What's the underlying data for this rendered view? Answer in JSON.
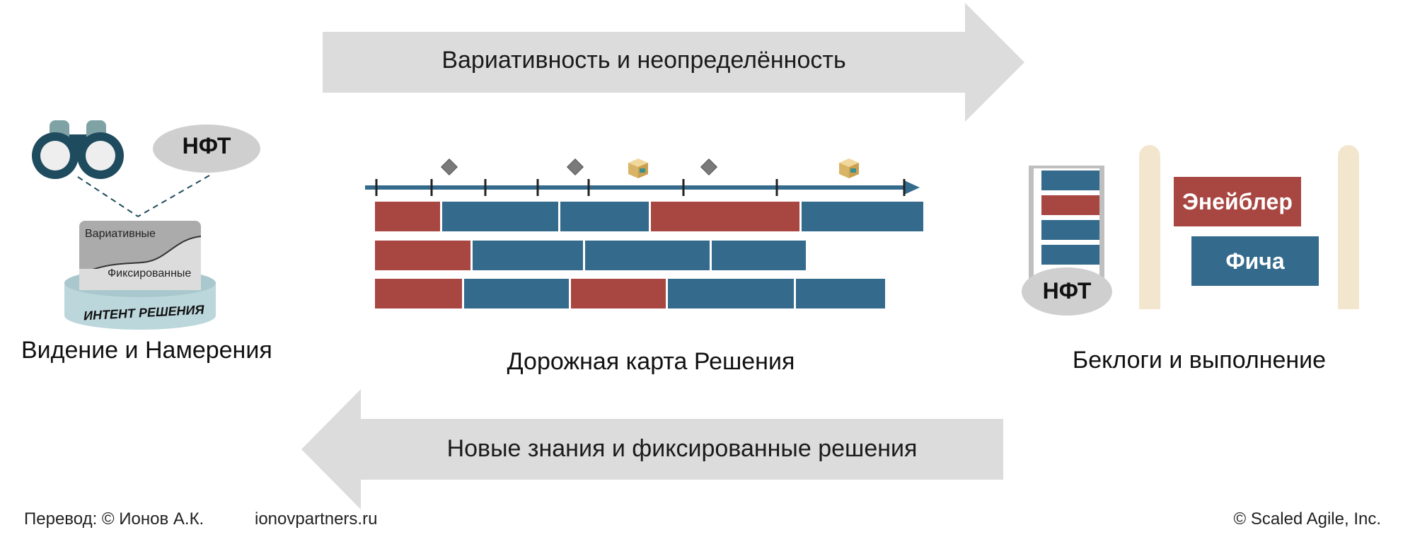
{
  "top_arrow": {
    "label": "Вариативность и неопределённость"
  },
  "bottom_arrow": {
    "label": "Новые знания и фиксированные решения"
  },
  "vision": {
    "bubble_label": "НФТ",
    "card_top": "Вариативные",
    "card_bottom": "Фиксированные",
    "platform_label": "ИНТЕНТ РЕШЕНИЯ",
    "caption": "Видение и Намерения"
  },
  "roadmap": {
    "caption": "Дорожная карта Решения",
    "rows": [
      [
        "red",
        "blue",
        "blue",
        "red",
        "blue"
      ],
      [
        "red",
        "blue",
        "blue",
        "blue"
      ],
      [
        "red",
        "blue",
        "red",
        "blue",
        "blue"
      ]
    ]
  },
  "backlogs": {
    "stack_label": "НФТ",
    "enabler_label": "Энейблер",
    "feature_label": "Фича",
    "caption": "Беклоги и выполнение",
    "stack": [
      "blue",
      "red",
      "blue",
      "blue"
    ]
  },
  "footer": {
    "translation": "Перевод: © Ионов А.К.",
    "site": "ionovpartners.ru",
    "copyright": "© Scaled Agile,  Inc."
  },
  "colors": {
    "red": "#a84642",
    "blue": "#346a8c",
    "arrow_gray": "#dcdcdc",
    "post_beige": "#f3e6cf"
  },
  "icons": [
    "binoculars-icon",
    "milestone-diamond-icon",
    "release-package-icon"
  ]
}
